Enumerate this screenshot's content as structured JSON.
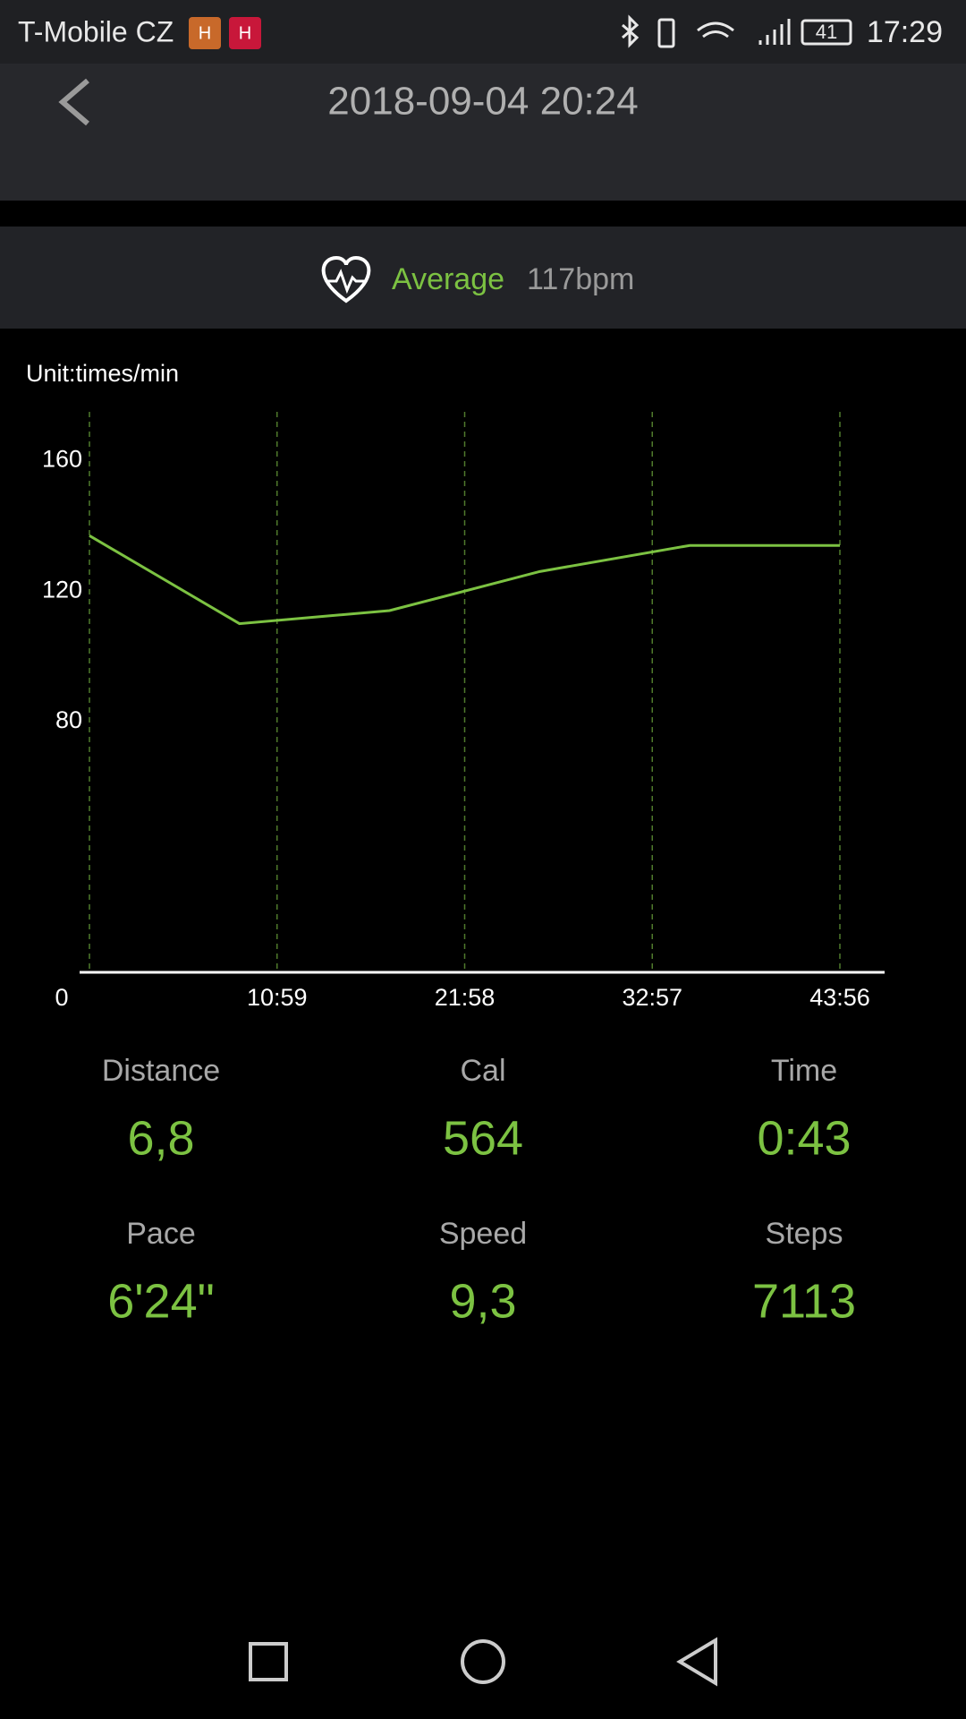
{
  "status_bar": {
    "carrier": "T-Mobile CZ",
    "badges": [
      "H",
      "H"
    ],
    "battery": "41",
    "time": "17:29"
  },
  "header": {
    "title": "2018-09-04 20:24"
  },
  "summary": {
    "label": "Average",
    "value": "117bpm"
  },
  "chart_data": {
    "type": "line",
    "unit_label": "Unit:times/min",
    "x": [
      0,
      527,
      1054,
      1582,
      2109,
      2636
    ],
    "values": [
      137,
      110,
      114,
      126,
      134,
      134
    ],
    "color": "#7cc242",
    "xlim": [
      0,
      2636
    ],
    "xticks": [
      0,
      {
        "value": 659,
        "label": "10:59"
      },
      {
        "value": 1318,
        "label": "21:58"
      },
      {
        "value": 1977,
        "label": "32:57"
      },
      {
        "value": 2636,
        "label": "43:56"
      }
    ],
    "ylim": [
      3,
      175
    ],
    "yticks": [
      80,
      120,
      160
    ],
    "grid": true
  },
  "stats": [
    {
      "label": "Distance",
      "value": "6,8"
    },
    {
      "label": "Cal",
      "value": "564"
    },
    {
      "label": "Time",
      "value": "0:43"
    },
    {
      "label": "Pace",
      "value": "6'24\""
    },
    {
      "label": "Speed",
      "value": "9,3"
    },
    {
      "label": "Steps",
      "value": "7113"
    }
  ]
}
